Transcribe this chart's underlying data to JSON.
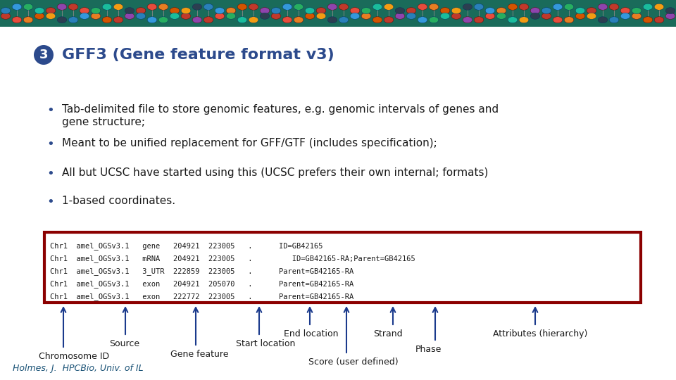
{
  "bg_color": "#ffffff",
  "title_number": "3",
  "title_number_bg": "#2c4a8c",
  "title_text": "GFF3 (Gene feature format v3)",
  "title_color": "#2c4a8c",
  "bullet_color": "#2c4a8c",
  "bullets": [
    "Tab-delimited file to store genomic features, e.g. genomic intervals of genes and\ngene structure;",
    "Meant to be unified replacement for GFF/GTF (includes specification);",
    "All but UCSC have started using this (UCSC prefers their own internal; formats)",
    "1-based coordinates."
  ],
  "table_lines": [
    "Chr1  amel_OGSv3.1   gene   204921  223005   .      ID=GB42165",
    "Chr1  amel_OGSv3.1   mRNA   204921  223005   .         ID=GB42165-RA;Parent=GB42165",
    "Chr1  amel_OGSv3.1   3_UTR  222859  223005   .      Parent=GB42165-RA",
    "Chr1  amel_OGSv3.1   exon   204921  205070   .      Parent=GB42165-RA",
    "Chr1  amel_OGSv3.1   exon   222772  223005   .      Parent=GB42165-RA"
  ],
  "table_border_color": "#8b0000",
  "arrow_color": "#1a3a8c",
  "footer_text": "Holmes, J.  HPCBio, Univ. of IL",
  "footer_color": "#1a5276",
  "dna_colors_top": [
    "#c0392b",
    "#e67e22",
    "#c0392b",
    "#2980b9",
    "#c0392b",
    "#8e44ad",
    "#c0392b",
    "#f39c12"
  ],
  "dna_colors_bot": [
    "#2980b9",
    "#27ae60",
    "#e67e22",
    "#c0392b",
    "#8e44ad",
    "#2980b9",
    "#27ae60",
    "#c0392b"
  ]
}
